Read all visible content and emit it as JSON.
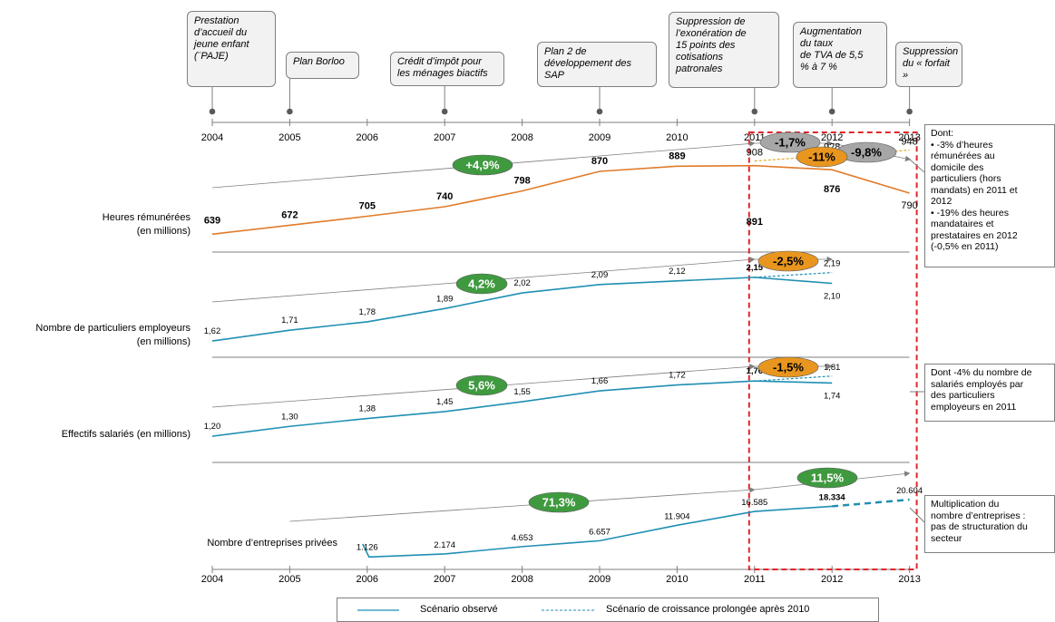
{
  "events": [
    {
      "text": "Prestation\nd’accueil du\njeune enfant\n(¨PAJE)",
      "year": "2004"
    },
    {
      "text": "Plan Borloo",
      "year": "2005"
    },
    {
      "text": "Crédit d’impôt pour\nles ménages biactifs",
      "year": "2007"
    },
    {
      "text": "Plan 2 de\ndéveloppement des\nSAP",
      "year": "2009"
    },
    {
      "text": "Suppression de\nl’exonération de\n15 points des\ncotisations\npatronales",
      "year": "2011"
    },
    {
      "text": "Augmentation\ndu taux\nde TVA de 5,5\n% à 7 %",
      "year": "2012"
    },
    {
      "text": "Suppression\ndu « forfait »",
      "year": "2013"
    }
  ],
  "notes": [
    "Dont:\n• -3% d’heures\n  rémunérées au\n  domicile des\n  particuliers (hors\n  mandats) en 2011 et\n  2012\n• -19% des heures\n  mandataires et\n  prestataires en 2012\n  (-0,5% en 2011)",
    "Dont -4% du nombre de\nsalariés employés par\ndes particuliers\nemployeurs en 2011",
    "Multiplication du\nnombre d’entreprises  :\npas de structuration du\nsecteur"
  ],
  "legend": {
    "observed": "Scénario observé",
    "prolonged": "Scénario de croissance prolongée après 2010"
  },
  "colors": {
    "hours": "#e07b2a",
    "blue": "#1f8fb3",
    "green": "#3f9a3f",
    "orange_badge": "#e8961f",
    "grey_badge": "#a6a6a6",
    "dashed_box": "#e0262a"
  },
  "chart_data": {
    "type": "line",
    "x": [
      "2004",
      "2005",
      "2006",
      "2007",
      "2008",
      "2009",
      "2010",
      "2011",
      "2012",
      "2013"
    ],
    "panels": [
      {
        "id": "hours",
        "label": "Heures rémunérées\n(en millions)",
        "observed": {
          "x": [
            "2004",
            "2005",
            "2006",
            "2007",
            "2008",
            "2009",
            "2010",
            "2011",
            "2012",
            "2013"
          ],
          "values": [
            639,
            672,
            705,
            740,
            798,
            870,
            889,
            891,
            876,
            790
          ],
          "labels": [
            "639",
            "672",
            "705",
            "740",
            "798",
            "870",
            "889",
            "891",
            "876",
            "790"
          ]
        },
        "projected": {
          "x": [
            "2011",
            "2012",
            "2013"
          ],
          "values": [
            908,
            928,
            948
          ],
          "labels": [
            "908",
            "928",
            "948"
          ]
        },
        "badges": [
          {
            "text": "+4,9%",
            "kind": "green"
          },
          {
            "text": "-1,7%",
            "kind": "grey"
          },
          {
            "text": "-11%",
            "kind": "orange"
          },
          {
            "text": "-9,8%",
            "kind": "grey"
          }
        ]
      },
      {
        "id": "employers",
        "label": "Nombre de particuliers employeurs\n(en millions)",
        "observed": {
          "x": [
            "2004",
            "2005",
            "2006",
            "2007",
            "2008",
            "2009",
            "2010",
            "2011",
            "2012"
          ],
          "values": [
            1.62,
            1.71,
            1.78,
            1.89,
            2.02,
            2.09,
            2.12,
            2.15,
            2.1
          ],
          "labels": [
            "1,62",
            "1,71",
            "1,78",
            "1,89",
            "2,02",
            "2,09",
            "2,12",
            "2,15",
            "2,10"
          ]
        },
        "projected": {
          "x": [
            "2011",
            "2012"
          ],
          "values": [
            2.15,
            2.19
          ],
          "labels": [
            "",
            "2,19"
          ]
        },
        "badges": [
          {
            "text": "4,2%",
            "kind": "green"
          },
          {
            "text": "-2,5%",
            "kind": "orange"
          }
        ]
      },
      {
        "id": "employees",
        "label": "Effectifs salariés (en millions)",
        "observed": {
          "x": [
            "2004",
            "2005",
            "2006",
            "2007",
            "2008",
            "2009",
            "2010",
            "2011",
            "2012"
          ],
          "values": [
            1.2,
            1.3,
            1.38,
            1.45,
            1.55,
            1.66,
            1.72,
            1.76,
            1.74
          ],
          "labels": [
            "1,20",
            "1,30",
            "1,38",
            "1,45",
            "1,55",
            "1,66",
            "1,72",
            "1,76",
            "1,74"
          ]
        },
        "projected": {
          "x": [
            "2011",
            "2012"
          ],
          "values": [
            1.76,
            1.81
          ],
          "labels": [
            "",
            "1,81"
          ]
        },
        "badges": [
          {
            "text": "5,6%",
            "kind": "green"
          },
          {
            "text": "-1,5%",
            "kind": "orange"
          }
        ]
      },
      {
        "id": "companies",
        "label": "Nombre d’entreprises privées",
        "observed": {
          "x": [
            "2006",
            "2007",
            "2008",
            "2009",
            "2010",
            "2011",
            "2012"
          ],
          "values": [
            1126,
            2174,
            4653,
            6657,
            11904,
            16585,
            18334
          ],
          "labels": [
            "1.126",
            "2.174",
            "4.653",
            "6.657",
            "11.904",
            "16.585",
            "18.334"
          ]
        },
        "projected": {
          "x": [
            "2012",
            "2013"
          ],
          "values": [
            18334,
            20604
          ],
          "labels": [
            "",
            "20.604"
          ]
        },
        "badges": [
          {
            "text": "71,3%",
            "kind": "green"
          },
          {
            "text": "11,5%",
            "kind": "green"
          }
        ]
      }
    ]
  }
}
